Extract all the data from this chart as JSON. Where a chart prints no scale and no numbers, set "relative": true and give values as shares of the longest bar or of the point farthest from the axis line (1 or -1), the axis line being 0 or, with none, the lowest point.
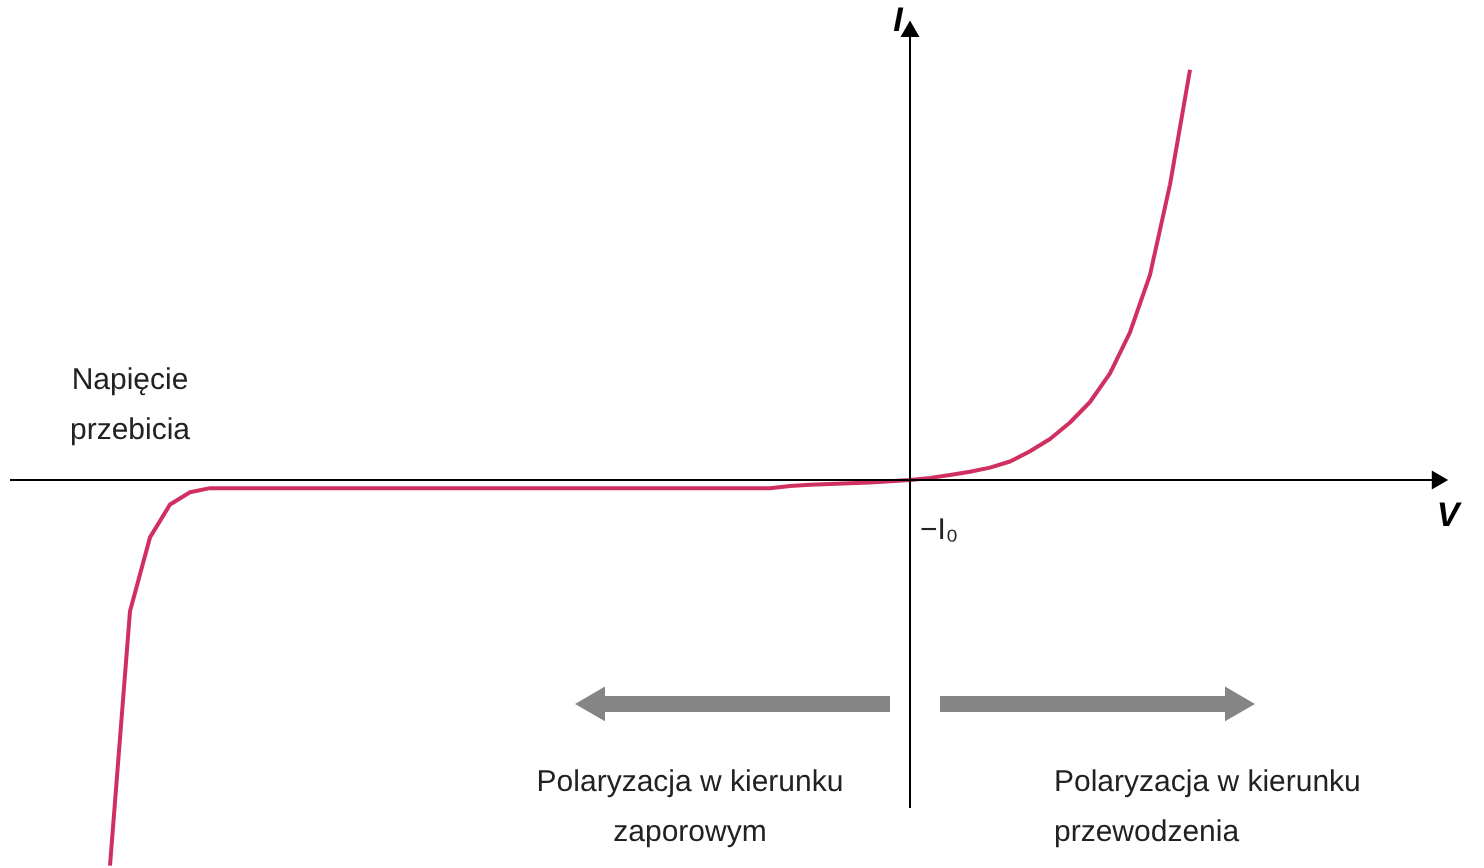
{
  "chart_data": {
    "type": "line",
    "relative": true,
    "ylabel": "I",
    "categories": [
      null,
      null,
      null,
      null,
      null,
      null,
      null,
      null,
      null,
      null,
      null,
      null,
      null,
      null,
      null,
      null,
      null,
      null,
      null,
      null,
      null,
      null,
      null,
      null,
      null,
      null,
      null,
      null,
      null,
      null,
      null,
      null,
      null,
      null,
      null,
      null,
      null,
      null,
      null,
      null,
      null,
      null,
      null,
      null,
      null,
      null,
      null,
      null,
      null,
      null,
      null,
      null,
      null,
      null,
      null
    ],
    "series": [
      {
        "color": "#d03060",
        "values": [
          -0.94,
          -0.32,
          -0.14,
          -0.06,
          -0.03,
          -0.02,
          -0.02,
          -0.02,
          -0.02,
          -0.02,
          -0.02,
          -0.02,
          -0.02,
          -0.02,
          -0.02,
          -0.02,
          -0.02,
          -0.02,
          -0.02,
          -0.02,
          -0.02,
          -0.02,
          -0.02,
          -0.02,
          -0.02,
          -0.02,
          -0.02,
          -0.02,
          -0.02,
          -0.02,
          -0.02,
          -0.02,
          -0.02,
          -0.02,
          -0.015,
          -0.012,
          -0.01,
          -0.008,
          -0.006,
          -0.003,
          0,
          0.005,
          0.012,
          0.02,
          0.03,
          0.045,
          0.07,
          0.1,
          0.14,
          0.19,
          0.26,
          0.36,
          0.5,
          0.72,
          1.0
        ]
      }
    ],
    "annotations": [
      "Napięcie przebicia",
      "−I₀",
      "Polaryzacja w kierunku zaporowym",
      "Polaryzacja w kierunku przewodzenia",
      "V"
    ]
  }
}
